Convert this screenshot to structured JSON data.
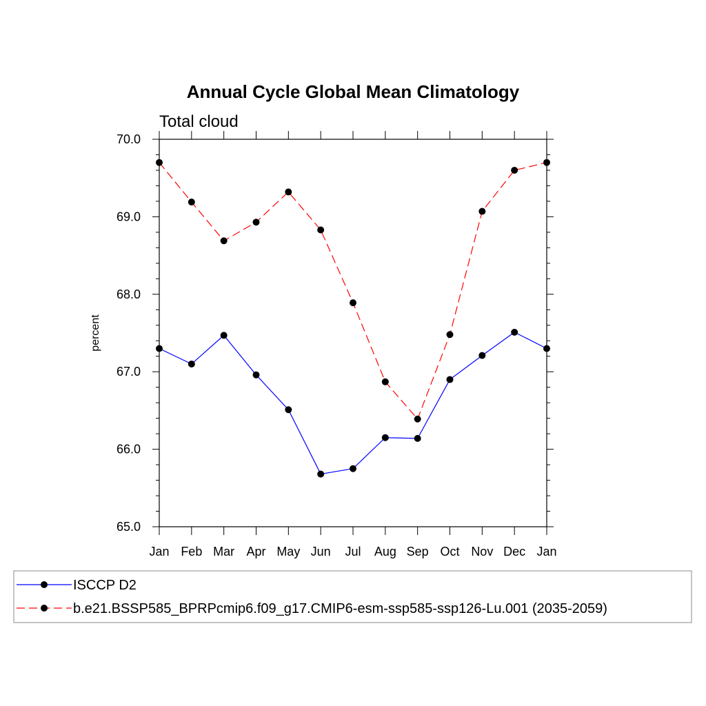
{
  "chart_data": {
    "type": "line",
    "title": "Annual Cycle Global Mean Climatology",
    "subtitle": "Total cloud",
    "xlabel": "",
    "ylabel": "percent",
    "categories": [
      "Jan",
      "Feb",
      "Mar",
      "Apr",
      "May",
      "Jun",
      "Jul",
      "Aug",
      "Sep",
      "Oct",
      "Nov",
      "Dec",
      "Jan"
    ],
    "ylim": [
      65.0,
      70.0
    ],
    "yticks": [
      "65.0",
      "66.0",
      "67.0",
      "68.0",
      "69.0",
      "70.0"
    ],
    "legend_position": "bottom",
    "series": [
      {
        "name": "ISCCP D2",
        "color": "#0000ff",
        "dash": "solid",
        "values": [
          67.3,
          67.1,
          67.47,
          66.96,
          66.51,
          65.68,
          65.75,
          66.15,
          66.14,
          66.9,
          67.21,
          67.51,
          67.3
        ]
      },
      {
        "name": "b.e21.BSSP585_BPRPcmip6.f09_g17.CMIP6-esm-ssp585-ssp126-Lu.001 (2035-2059)",
        "color": "#ff0000",
        "dash": "dashed",
        "values": [
          69.7,
          69.19,
          68.69,
          68.93,
          69.32,
          68.83,
          67.89,
          66.87,
          66.39,
          67.48,
          69.07,
          69.6,
          69.7
        ]
      }
    ]
  }
}
